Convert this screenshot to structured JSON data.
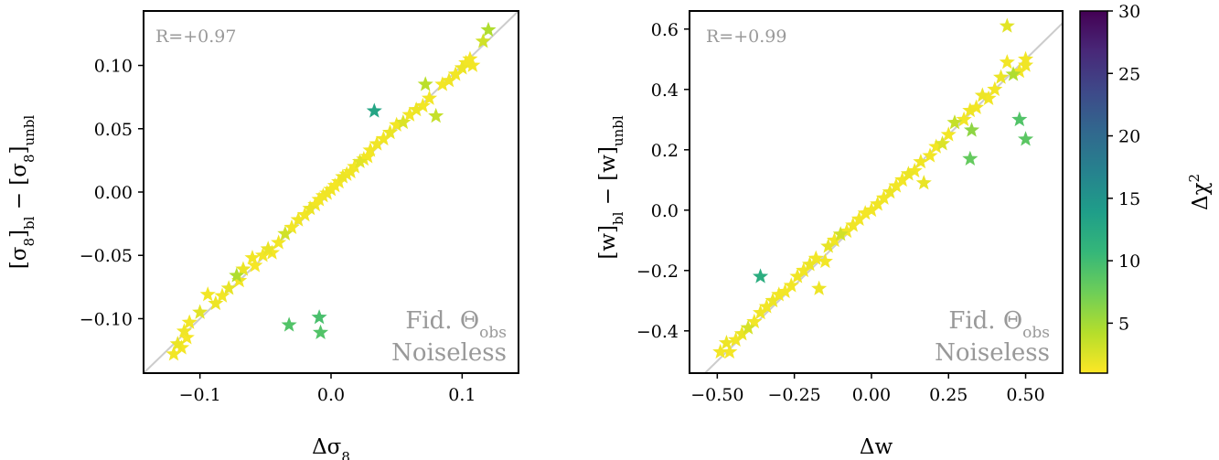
{
  "chart_data": [
    {
      "type": "scatter",
      "xlabel": "Δσ",
      "xlabel_sub": "8",
      "ylabel_parts": [
        "[σ",
        "8",
        "]",
        "bl",
        " − [σ",
        "8",
        "]",
        "unbl"
      ],
      "correlation_label": "R=+0.97",
      "annotations": [
        "Fid. Θ",
        "Noiseless"
      ],
      "annotation_sub": "obs",
      "xlim": [
        -0.143,
        0.143
      ],
      "ylim": [
        -0.143,
        0.143
      ],
      "xticks": [
        -0.1,
        0.0,
        0.1
      ],
      "xtick_labels": [
        "−0.1",
        "0.0",
        "0.1"
      ],
      "yticks": [
        -0.1,
        -0.05,
        0.0,
        0.05,
        0.1
      ],
      "ytick_labels": [
        "−0.10",
        "−0.05",
        "0.00",
        "0.05",
        "0.10"
      ],
      "identity_line": true,
      "marker": "star",
      "points": [
        {
          "x": -0.12,
          "y": -0.128,
          "c": 1.5
        },
        {
          "x": -0.117,
          "y": -0.12,
          "c": 1.8
        },
        {
          "x": -0.114,
          "y": -0.123,
          "c": 1.4
        },
        {
          "x": -0.112,
          "y": -0.11,
          "c": 1.6
        },
        {
          "x": -0.11,
          "y": -0.115,
          "c": 1.3
        },
        {
          "x": -0.108,
          "y": -0.103,
          "c": 1.5
        },
        {
          "x": -0.1,
          "y": -0.095,
          "c": 2.2
        },
        {
          "x": -0.094,
          "y": -0.081,
          "c": 1.5
        },
        {
          "x": -0.088,
          "y": -0.088,
          "c": 1.7
        },
        {
          "x": -0.083,
          "y": -0.082,
          "c": 1.5
        },
        {
          "x": -0.078,
          "y": -0.076,
          "c": 2.0
        },
        {
          "x": -0.072,
          "y": -0.066,
          "c": 4.5
        },
        {
          "x": -0.07,
          "y": -0.07,
          "c": 1.5
        },
        {
          "x": -0.067,
          "y": -0.061,
          "c": 1.8
        },
        {
          "x": -0.06,
          "y": -0.052,
          "c": 1.5
        },
        {
          "x": -0.058,
          "y": -0.058,
          "c": 1.3
        },
        {
          "x": -0.052,
          "y": -0.05,
          "c": 1.5
        },
        {
          "x": -0.048,
          "y": -0.045,
          "c": 1.9
        },
        {
          "x": -0.045,
          "y": -0.048,
          "c": 1.4
        },
        {
          "x": -0.04,
          "y": -0.04,
          "c": 1.5
        },
        {
          "x": -0.035,
          "y": -0.033,
          "c": 3.0
        },
        {
          "x": -0.03,
          "y": -0.028,
          "c": 1.5
        },
        {
          "x": -0.025,
          "y": -0.022,
          "c": 1.6
        },
        {
          "x": -0.02,
          "y": -0.018,
          "c": 1.5
        },
        {
          "x": -0.016,
          "y": -0.013,
          "c": 1.8
        },
        {
          "x": -0.012,
          "y": -0.01,
          "c": 1.5
        },
        {
          "x": -0.009,
          "y": -0.006,
          "c": 1.4
        },
        {
          "x": -0.006,
          "y": -0.003,
          "c": 1.5
        },
        {
          "x": -0.003,
          "y": -0.001,
          "c": 1.6
        },
        {
          "x": 0.0,
          "y": 0.002,
          "c": 1.5
        },
        {
          "x": 0.003,
          "y": 0.005,
          "c": 1.3
        },
        {
          "x": 0.006,
          "y": 0.008,
          "c": 1.5
        },
        {
          "x": 0.009,
          "y": 0.012,
          "c": 1.7
        },
        {
          "x": 0.012,
          "y": 0.014,
          "c": 1.5
        },
        {
          "x": 0.015,
          "y": 0.016,
          "c": 1.6
        },
        {
          "x": 0.018,
          "y": 0.02,
          "c": 1.5
        },
        {
          "x": 0.022,
          "y": 0.024,
          "c": 2.2
        },
        {
          "x": 0.025,
          "y": 0.026,
          "c": 1.5
        },
        {
          "x": 0.028,
          "y": 0.028,
          "c": 1.4
        },
        {
          "x": 0.03,
          "y": 0.033,
          "c": 1.5
        },
        {
          "x": 0.035,
          "y": 0.038,
          "c": 1.6
        },
        {
          "x": 0.04,
          "y": 0.042,
          "c": 1.5
        },
        {
          "x": 0.045,
          "y": 0.047,
          "c": 1.8
        },
        {
          "x": 0.05,
          "y": 0.053,
          "c": 1.5
        },
        {
          "x": 0.055,
          "y": 0.055,
          "c": 2.5
        },
        {
          "x": 0.06,
          "y": 0.061,
          "c": 1.5
        },
        {
          "x": 0.065,
          "y": 0.065,
          "c": 1.7
        },
        {
          "x": 0.07,
          "y": 0.068,
          "c": 1.5
        },
        {
          "x": 0.072,
          "y": 0.085,
          "c": 4.0
        },
        {
          "x": 0.075,
          "y": 0.074,
          "c": 1.5
        },
        {
          "x": 0.08,
          "y": 0.06,
          "c": 3.5
        },
        {
          "x": 0.085,
          "y": 0.085,
          "c": 1.5
        },
        {
          "x": 0.09,
          "y": 0.088,
          "c": 1.6
        },
        {
          "x": 0.095,
          "y": 0.093,
          "c": 1.5
        },
        {
          "x": 0.1,
          "y": 0.098,
          "c": 1.7
        },
        {
          "x": 0.103,
          "y": 0.102,
          "c": 1.5
        },
        {
          "x": 0.106,
          "y": 0.105,
          "c": 1.4
        },
        {
          "x": 0.108,
          "y": 0.1,
          "c": 1.5
        },
        {
          "x": 0.116,
          "y": 0.119,
          "c": 3.0
        },
        {
          "x": 0.12,
          "y": 0.128,
          "c": 4.5
        },
        {
          "x": 0.033,
          "y": 0.064,
          "c": 13.0
        },
        {
          "x": -0.032,
          "y": -0.105,
          "c": 9.0
        },
        {
          "x": -0.009,
          "y": -0.099,
          "c": 9.5
        },
        {
          "x": -0.008,
          "y": -0.111,
          "c": 9.0
        }
      ]
    },
    {
      "type": "scatter",
      "xlabel": "Δw",
      "ylabel_parts": [
        "[w]",
        "bl",
        " − [w]",
        "unbl"
      ],
      "correlation_label": "R=+0.99",
      "annotations": [
        "Fid. Θ",
        "Noiseless"
      ],
      "annotation_sub": "obs",
      "xlim": [
        -0.59,
        0.62
      ],
      "ylim": [
        -0.54,
        0.66
      ],
      "xticks": [
        -0.5,
        -0.25,
        0.0,
        0.25,
        0.5
      ],
      "xtick_labels": [
        "−0.50",
        "−0.25",
        "0.00",
        "0.25",
        "0.50"
      ],
      "yticks": [
        -0.4,
        -0.2,
        0.0,
        0.2,
        0.4,
        0.6
      ],
      "ytick_labels": [
        "−0.4",
        "−0.2",
        "0.0",
        "0.2",
        "0.4",
        "0.6"
      ],
      "identity_line": true,
      "marker": "star",
      "points": [
        {
          "x": -0.49,
          "y": -0.47,
          "c": 1.5
        },
        {
          "x": -0.47,
          "y": -0.44,
          "c": 1.7
        },
        {
          "x": -0.46,
          "y": -0.47,
          "c": 1.4
        },
        {
          "x": -0.44,
          "y": -0.43,
          "c": 1.5
        },
        {
          "x": -0.42,
          "y": -0.41,
          "c": 1.8
        },
        {
          "x": -0.4,
          "y": -0.39,
          "c": 2.8
        },
        {
          "x": -0.38,
          "y": -0.37,
          "c": 1.5
        },
        {
          "x": -0.36,
          "y": -0.34,
          "c": 1.6
        },
        {
          "x": -0.34,
          "y": -0.32,
          "c": 1.5
        },
        {
          "x": -0.32,
          "y": -0.3,
          "c": 1.7
        },
        {
          "x": -0.3,
          "y": -0.28,
          "c": 1.5
        },
        {
          "x": -0.28,
          "y": -0.27,
          "c": 1.4
        },
        {
          "x": -0.26,
          "y": -0.25,
          "c": 1.5
        },
        {
          "x": -0.24,
          "y": -0.22,
          "c": 1.6
        },
        {
          "x": -0.22,
          "y": -0.2,
          "c": 1.5
        },
        {
          "x": -0.2,
          "y": -0.18,
          "c": 1.8
        },
        {
          "x": -0.18,
          "y": -0.16,
          "c": 1.5
        },
        {
          "x": -0.17,
          "y": -0.26,
          "c": 1.7
        },
        {
          "x": -0.15,
          "y": -0.17,
          "c": 1.5
        },
        {
          "x": -0.14,
          "y": -0.12,
          "c": 2.0
        },
        {
          "x": -0.12,
          "y": -0.1,
          "c": 1.5
        },
        {
          "x": -0.1,
          "y": -0.08,
          "c": 3.0
        },
        {
          "x": -0.08,
          "y": -0.07,
          "c": 1.5
        },
        {
          "x": -0.06,
          "y": -0.05,
          "c": 1.6
        },
        {
          "x": -0.04,
          "y": -0.03,
          "c": 1.5
        },
        {
          "x": -0.02,
          "y": -0.01,
          "c": 1.4
        },
        {
          "x": 0.0,
          "y": 0.0,
          "c": 1.5
        },
        {
          "x": 0.02,
          "y": 0.02,
          "c": 1.6
        },
        {
          "x": 0.04,
          "y": 0.04,
          "c": 1.5
        },
        {
          "x": 0.06,
          "y": 0.06,
          "c": 1.7
        },
        {
          "x": 0.08,
          "y": 0.08,
          "c": 1.5
        },
        {
          "x": 0.1,
          "y": 0.1,
          "c": 1.5
        },
        {
          "x": 0.12,
          "y": 0.12,
          "c": 1.8
        },
        {
          "x": 0.14,
          "y": 0.13,
          "c": 1.5
        },
        {
          "x": 0.16,
          "y": 0.16,
          "c": 1.6
        },
        {
          "x": 0.17,
          "y": 0.09,
          "c": 1.9
        },
        {
          "x": 0.19,
          "y": 0.18,
          "c": 1.5
        },
        {
          "x": 0.21,
          "y": 0.21,
          "c": 1.5
        },
        {
          "x": 0.23,
          "y": 0.22,
          "c": 2.5
        },
        {
          "x": 0.25,
          "y": 0.25,
          "c": 1.5
        },
        {
          "x": 0.27,
          "y": 0.29,
          "c": 3.5
        },
        {
          "x": 0.3,
          "y": 0.3,
          "c": 1.5
        },
        {
          "x": 0.32,
          "y": 0.33,
          "c": 1.6
        },
        {
          "x": 0.34,
          "y": 0.34,
          "c": 1.5
        },
        {
          "x": 0.36,
          "y": 0.38,
          "c": 1.7
        },
        {
          "x": 0.38,
          "y": 0.37,
          "c": 1.5
        },
        {
          "x": 0.4,
          "y": 0.4,
          "c": 1.5
        },
        {
          "x": 0.42,
          "y": 0.44,
          "c": 1.8
        },
        {
          "x": 0.44,
          "y": 0.49,
          "c": 1.5
        },
        {
          "x": 0.46,
          "y": 0.45,
          "c": 4.5
        },
        {
          "x": 0.48,
          "y": 0.46,
          "c": 1.5
        },
        {
          "x": 0.5,
          "y": 0.48,
          "c": 1.6
        },
        {
          "x": 0.5,
          "y": 0.5,
          "c": 1.5
        },
        {
          "x": 0.44,
          "y": 0.61,
          "c": 2.2
        },
        {
          "x": 0.325,
          "y": 0.265,
          "c": 6.0
        },
        {
          "x": 0.32,
          "y": 0.17,
          "c": 8.0
        },
        {
          "x": 0.48,
          "y": 0.3,
          "c": 9.0
        },
        {
          "x": 0.5,
          "y": 0.235,
          "c": 8.5
        },
        {
          "x": -0.36,
          "y": -0.22,
          "c": 12.0
        }
      ]
    }
  ],
  "colorbar": {
    "label": "Δχ",
    "label_sup": "2",
    "cmin": 1,
    "cmax": 30,
    "ticks": [
      5,
      10,
      15,
      20,
      25,
      30
    ],
    "tick_labels": [
      "5",
      "10",
      "15",
      "20",
      "25",
      "30"
    ],
    "colormap": "viridis",
    "stops": [
      "#fde725",
      "#b5de2b",
      "#6ece58",
      "#35b779",
      "#1f9e89",
      "#26828e",
      "#31688e",
      "#3e4989",
      "#482878",
      "#440154"
    ]
  },
  "colors": {
    "identity_line": "#cccccc",
    "annotation_text": "#999999",
    "axis": "#000000"
  }
}
